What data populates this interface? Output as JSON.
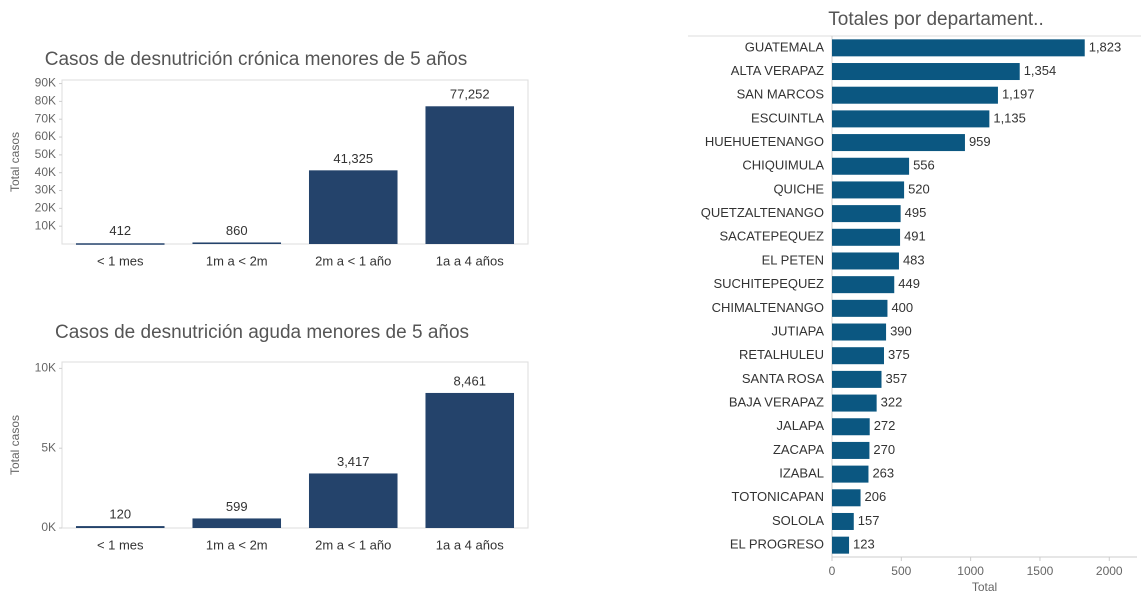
{
  "chart_data": [
    {
      "type": "bar",
      "title": "Casos de desnutrición crónica menores de 5 años",
      "ylabel": "Total casos",
      "categories": [
        "< 1 mes",
        "1m a < 2m",
        "2m a < 1 año",
        "1a a 4 años"
      ],
      "values": [
        412,
        860,
        41325,
        77252
      ],
      "value_labels": [
        "412",
        "860",
        "41,325",
        "77,252"
      ],
      "color": "#24436b",
      "ylim": [
        0,
        92000
      ],
      "yticks": [
        {
          "value": 10000,
          "label": "10K"
        },
        {
          "value": 20000,
          "label": "20K"
        },
        {
          "value": 30000,
          "label": "30K"
        },
        {
          "value": 40000,
          "label": "40K"
        },
        {
          "value": 50000,
          "label": "50K"
        },
        {
          "value": 60000,
          "label": "60K"
        },
        {
          "value": 70000,
          "label": "70K"
        },
        {
          "value": 80000,
          "label": "80K"
        },
        {
          "value": 90000,
          "label": "90K"
        }
      ]
    },
    {
      "type": "bar",
      "title": "Casos de desnutrición aguda menores de 5 años",
      "ylabel": "Total casos",
      "categories": [
        "< 1 mes",
        "1m a < 2m",
        "2m a < 1 año",
        "1a a 4 años"
      ],
      "values": [
        120,
        599,
        3417,
        8461
      ],
      "value_labels": [
        "120",
        "599",
        "3,417",
        "8,461"
      ],
      "color": "#24436b",
      "ylim": [
        0,
        10400
      ],
      "yticks": [
        {
          "value": 0,
          "label": "0K"
        },
        {
          "value": 5000,
          "label": "5K"
        },
        {
          "value": 10000,
          "label": "10K"
        }
      ]
    },
    {
      "type": "barh",
      "title": "Totales por departament..",
      "xlabel": "Total",
      "categories": [
        "GUATEMALA",
        "ALTA VERAPAZ",
        "SAN MARCOS",
        "ESCUINTLA",
        "HUEHUETENANGO",
        "CHIQUIMULA",
        "QUICHE",
        "QUETZALTENANGO",
        "SACATEPEQUEZ",
        "EL PETEN",
        "SUCHITEPEQUEZ",
        "CHIMALTENANGO",
        "JUTIAPA",
        "RETALHULEU",
        "SANTA ROSA",
        "BAJA VERAPAZ",
        "JALAPA",
        "ZACAPA",
        "IZABAL",
        "TOTONICAPAN",
        "SOLOLA",
        "EL PROGRESO"
      ],
      "values": [
        1823,
        1354,
        1197,
        1135,
        959,
        556,
        520,
        495,
        491,
        483,
        449,
        400,
        390,
        375,
        357,
        322,
        272,
        270,
        263,
        206,
        157,
        123
      ],
      "value_labels": [
        "1,823",
        "1,354",
        "1,197",
        "1,135",
        "959",
        "556",
        "520",
        "495",
        "491",
        "483",
        "449",
        "400",
        "390",
        "375",
        "357",
        "322",
        "272",
        "270",
        "263",
        "206",
        "157",
        "123"
      ],
      "color": "#0b5781",
      "xlim": [
        0,
        2200
      ],
      "xticks": [
        0,
        500,
        1000,
        1500,
        2000
      ]
    }
  ]
}
